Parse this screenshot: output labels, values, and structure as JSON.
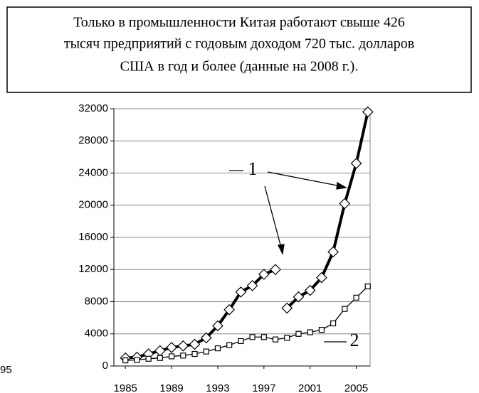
{
  "chart_data": {
    "type": "line",
    "title": [
      "Только в промышленности Китая работают свыше 426",
      "тысяч предприятий с годовым доходом 720 тыс. долларов",
      "США в год  и более (данные на 2008 г.)."
    ],
    "annotations": [
      "1",
      "2",
      "95"
    ],
    "xlim": [
      1984,
      2006.2
    ],
    "xticks": [
      1985,
      1989,
      1993,
      1997,
      2001,
      2005
    ],
    "ylim": [
      0,
      32000
    ],
    "yticks": [
      0,
      4000,
      8000,
      12000,
      16000,
      20000,
      24000,
      28000,
      32000
    ],
    "grid": true,
    "series": [
      {
        "color": "#000000",
        "marker": "diamond",
        "x": [
          1985,
          1986,
          1987,
          1988,
          1989,
          1990,
          1991,
          1992,
          1993,
          1994,
          1995,
          1996,
          1997,
          1998
        ],
        "values": [
          1000,
          1100,
          1500,
          1900,
          2300,
          2500,
          2700,
          3500,
          5000,
          7000,
          9200,
          10000,
          11400,
          12000
        ]
      },
      {
        "color": "#000000",
        "marker": "diamond",
        "x": [
          1999,
          2000,
          2001,
          2002,
          2003,
          2004,
          2005,
          2006
        ],
        "values": [
          7200,
          8600,
          9400,
          11000,
          14200,
          20200,
          25200,
          31600
        ]
      },
      {
        "color": "#000000",
        "marker": "square",
        "x": [
          1985,
          1986,
          1987,
          1988,
          1989,
          1990,
          1991,
          1992,
          1993,
          1994,
          1995,
          1996,
          1997,
          1998,
          1999,
          2000,
          2001,
          2002,
          2003,
          2004,
          2005,
          2006
        ],
        "values": [
          700,
          750,
          900,
          1000,
          1200,
          1300,
          1500,
          1800,
          2200,
          2600,
          3100,
          3600,
          3600,
          3300,
          3500,
          4000,
          4200,
          4500,
          5300,
          7100,
          8500,
          9900
        ]
      }
    ]
  }
}
